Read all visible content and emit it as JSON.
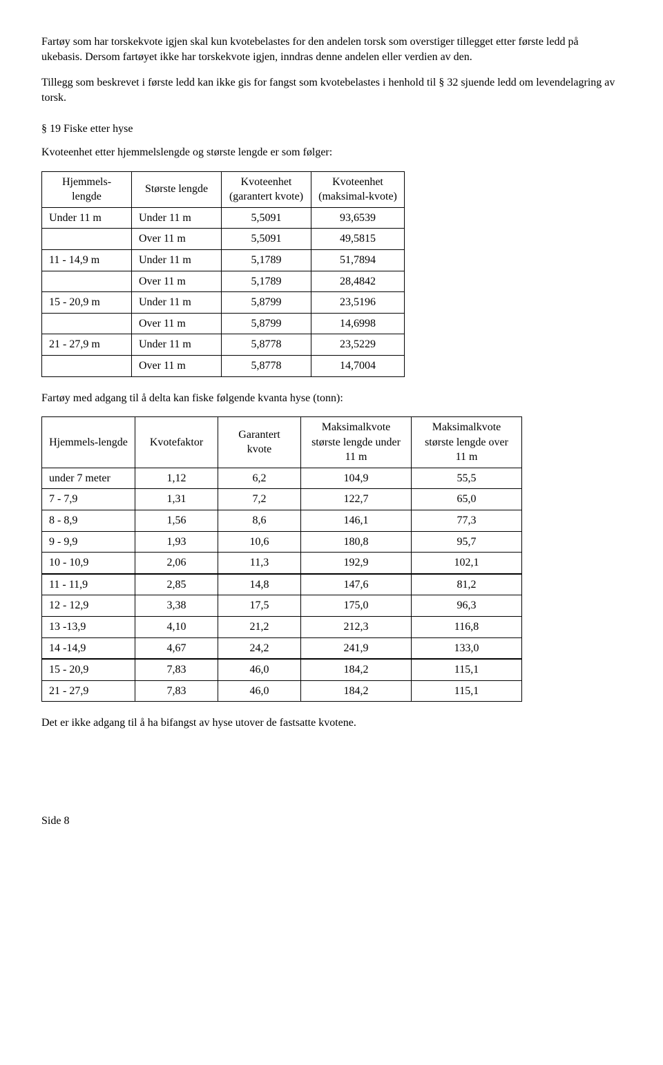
{
  "para1": "Fartøy som har torskekvote igjen skal kun kvotebelastes for den andelen torsk som overstiger tillegget etter første ledd på ukebasis. Dersom fartøyet ikke har torskekvote igjen, inndras denne andelen eller verdien av den.",
  "para2": "Tillegg som beskrevet i første ledd kan ikke gis for fangst som kvotebelastes i henhold til § 32 sjuende ledd om levendelagring av torsk.",
  "section19": "§ 19 Fiske etter hyse",
  "t1_intro": "Kvoteenhet etter hjemmelslengde og største lengde er som følger:",
  "t1": {
    "headers": [
      "Hjemmels-lengde",
      "Største lengde",
      "Kvoteenhet (garantert kvote)",
      "Kvoteenhet (maksimal-kvote)"
    ],
    "rows": [
      [
        "Under 11 m",
        "Under 11 m",
        "5,5091",
        "93,6539"
      ],
      [
        "",
        "Over 11 m",
        "5,5091",
        "49,5815"
      ],
      [
        "11 - 14,9 m",
        "Under 11 m",
        "5,1789",
        "51,7894"
      ],
      [
        "",
        "Over 11 m",
        "5,1789",
        "28,4842"
      ],
      [
        "15 - 20,9 m",
        "Under 11 m",
        "5,8799",
        "23,5196"
      ],
      [
        "",
        "Over 11 m",
        "5,8799",
        "14,6998"
      ],
      [
        "21 - 27,9 m",
        "Under 11 m",
        "5,8778",
        "23,5229"
      ],
      [
        "",
        "Over 11 m",
        "5,8778",
        "14,7004"
      ]
    ]
  },
  "t2_intro": "Fartøy med adgang til å delta kan fiske følgende kvanta hyse (tonn):",
  "t2": {
    "headers": [
      "Hjemmels-lengde",
      "Kvotefaktor",
      "Garantert kvote",
      "Maksimalkvote største lengde under 11 m",
      "Maksimalkvote største lengde over 11 m"
    ],
    "rows": [
      [
        "under 7 meter",
        "1,12",
        "6,2",
        "104,9",
        "55,5"
      ],
      [
        "7 - 7,9",
        "1,31",
        "7,2",
        "122,7",
        "65,0"
      ],
      [
        "8 - 8,9",
        "1,56",
        "8,6",
        "146,1",
        "77,3"
      ],
      [
        "9 - 9,9",
        "1,93",
        "10,6",
        "180,8",
        "95,7"
      ],
      [
        "10 - 10,9",
        "2,06",
        "11,3",
        "192,9",
        "102,1"
      ],
      [
        "11 - 11,9",
        "2,85",
        "14,8",
        "147,6",
        "81,2"
      ],
      [
        "12 - 12,9",
        "3,38",
        "17,5",
        "175,0",
        "96,3"
      ],
      [
        "13 -13,9",
        "4,10",
        "21,2",
        "212,3",
        "116,8"
      ],
      [
        "14 -14,9",
        "4,67",
        "24,2",
        "241,9",
        "133,0"
      ],
      [
        "15 - 20,9",
        "7,83",
        "46,0",
        "184,2",
        "115,1"
      ],
      [
        "21 - 27,9",
        "7,83",
        "46,0",
        "184,2",
        "115,1"
      ]
    ],
    "thick_rows": [
      5,
      9
    ]
  },
  "para3": "Det er ikke adgang til å ha bifangst av hyse utover de fastsatte kvotene.",
  "footer": "Side 8"
}
